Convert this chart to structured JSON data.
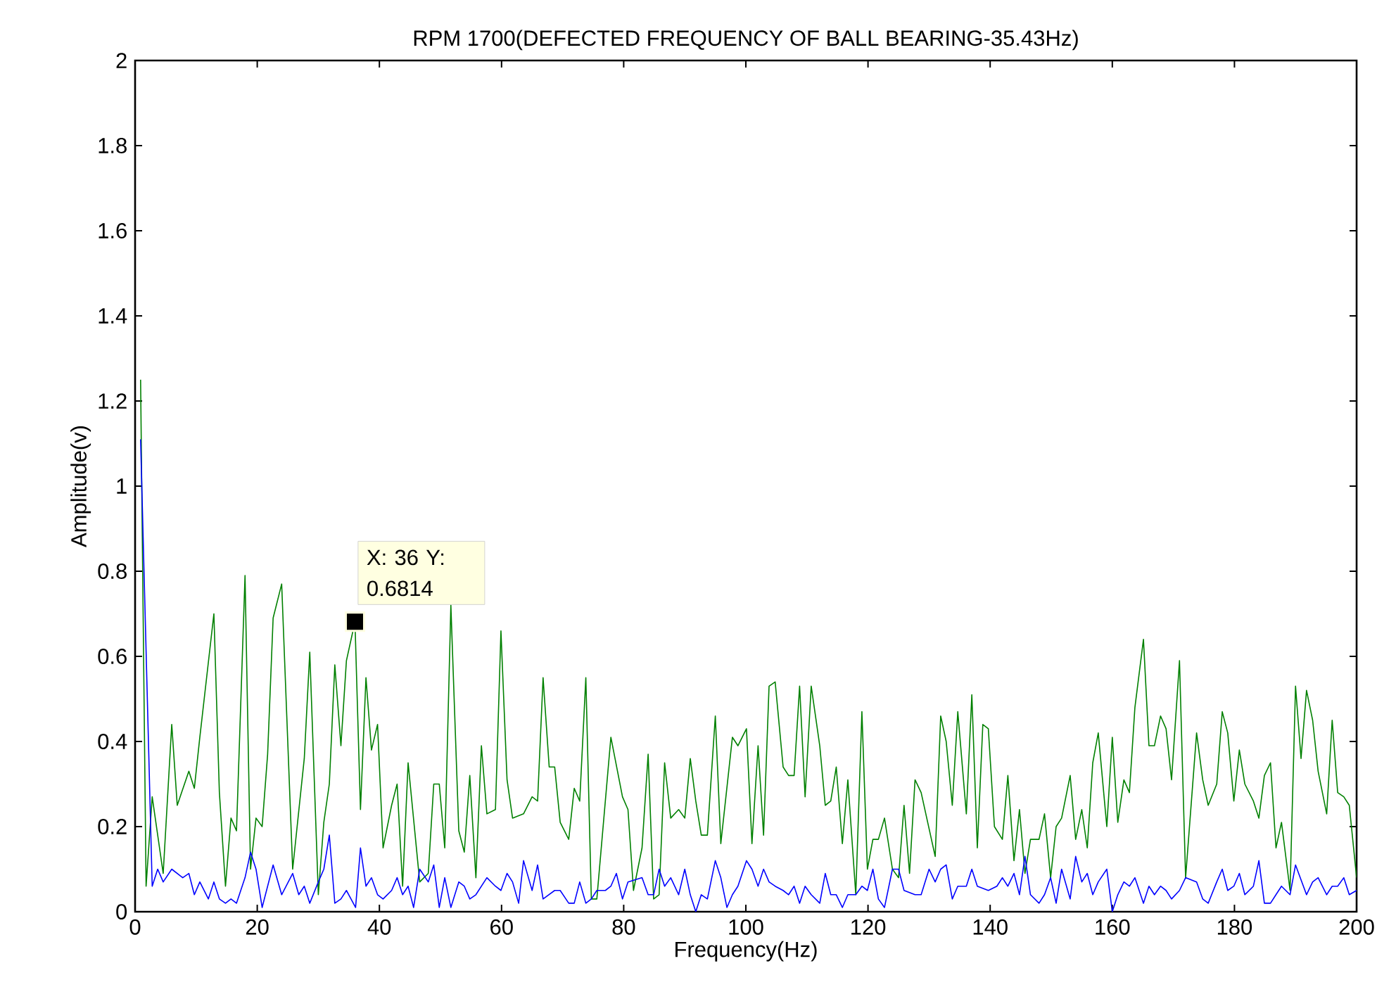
{
  "chart_data": {
    "type": "line",
    "title": "RPM 1700(DEFECTED FREQUENCY OF BALL BEARING-35.43Hz)",
    "xlabel": "Frequency(Hz)",
    "ylabel": "Amplitude(v)",
    "xlim": [
      0,
      200
    ],
    "ylim": [
      0,
      2
    ],
    "xticks": [
      0,
      20,
      40,
      60,
      80,
      100,
      120,
      140,
      160,
      180,
      200
    ],
    "yticks": [
      0,
      0.2,
      0.4,
      0.6,
      0.8,
      1,
      1.2,
      1.4,
      1.6,
      1.8,
      2
    ],
    "grid": false,
    "annotations": [
      {
        "text": "X: 36 Y: 0.6814",
        "x": 36,
        "y": 0.6814
      }
    ],
    "series": [
      {
        "color": "#008000",
        "x": [
          0.9,
          1.8,
          2.8,
          4.6,
          6.0,
          6.9,
          8.8,
          9.7,
          10.6,
          12.9,
          13.8,
          14.8,
          15.7,
          16.6,
          18.0,
          18.9,
          19.8,
          20.8,
          21.7,
          22.6,
          24.0,
          25.8,
          27.7,
          28.6,
          30.0,
          30.9,
          31.8,
          32.7,
          33.7,
          34.6,
          36,
          36.9,
          37.8,
          38.7,
          39.7,
          40.6,
          42.0,
          42.9,
          43.8,
          44.7,
          46.6,
          48.0,
          48.9,
          49.8,
          50.7,
          51.7,
          53.0,
          53.9,
          54.8,
          55.8,
          56.7,
          57.6,
          59.0,
          59.9,
          60.9,
          61.8,
          63.6,
          65.0,
          65.9,
          66.8,
          67.8,
          68.7,
          69.6,
          71.0,
          71.9,
          72.8,
          73.8,
          74.7,
          75.6,
          77.9,
          79.8,
          80.7,
          81.6,
          83.0,
          84.0,
          84.9,
          85.8,
          86.7,
          87.7,
          89.0,
          90.0,
          90.9,
          91.8,
          92.7,
          93.7,
          95.0,
          95.9,
          97.8,
          98.7,
          100.1,
          101.0,
          102.0,
          102.9,
          103.8,
          104.8,
          106.1,
          107.0,
          107.9,
          108.8,
          109.7,
          110.7,
          112.1,
          113.0,
          113.9,
          114.8,
          115.8,
          116.7,
          118.0,
          119.0,
          119.9,
          120.8,
          121.7,
          122.7,
          124.0,
          125.0,
          125.9,
          126.8,
          127.7,
          128.7,
          131.0,
          131.9,
          132.8,
          133.8,
          134.7,
          136.1,
          137.0,
          137.9,
          138.8,
          139.7,
          140.7,
          142.0,
          142.9,
          143.9,
          144.8,
          145.7,
          146.6,
          148.0,
          148.9,
          149.9,
          150.8,
          151.7,
          153.1,
          154.0,
          155.0,
          155.9,
          156.8,
          157.7,
          159.1,
          160.0,
          160.9,
          161.9,
          162.8,
          163.7,
          165.1,
          166.0,
          166.9,
          167.9,
          168.8,
          169.7,
          171.0,
          172.0,
          173.8,
          174.8,
          175.7,
          177.1,
          178.0,
          178.9,
          179.9,
          180.8,
          181.7,
          183.1,
          184.0,
          184.9,
          185.9,
          186.8,
          187.7,
          189.1,
          190.0,
          190.9,
          191.8,
          192.8,
          193.7,
          195.1,
          196.0,
          196.9,
          197.9,
          198.8,
          200
        ],
        "values": [
          1.25,
          0.06,
          0.27,
          0.09,
          0.44,
          0.25,
          0.33,
          0.29,
          0.41,
          0.7,
          0.28,
          0.06,
          0.22,
          0.19,
          0.79,
          0.1,
          0.22,
          0.2,
          0.37,
          0.69,
          0.77,
          0.1,
          0.36,
          0.61,
          0.04,
          0.21,
          0.3,
          0.58,
          0.39,
          0.59,
          0.6814,
          0.24,
          0.55,
          0.38,
          0.44,
          0.15,
          0.25,
          0.3,
          0.06,
          0.35,
          0.07,
          0.09,
          0.3,
          0.3,
          0.15,
          0.72,
          0.19,
          0.14,
          0.32,
          0.08,
          0.39,
          0.23,
          0.24,
          0.66,
          0.31,
          0.22,
          0.23,
          0.27,
          0.26,
          0.55,
          0.34,
          0.34,
          0.21,
          0.17,
          0.29,
          0.26,
          0.55,
          0.03,
          0.03,
          0.41,
          0.27,
          0.24,
          0.05,
          0.15,
          0.37,
          0.03,
          0.04,
          0.35,
          0.22,
          0.24,
          0.22,
          0.36,
          0.26,
          0.18,
          0.18,
          0.46,
          0.16,
          0.41,
          0.39,
          0.43,
          0.16,
          0.39,
          0.18,
          0.53,
          0.54,
          0.34,
          0.32,
          0.32,
          0.53,
          0.27,
          0.53,
          0.39,
          0.25,
          0.26,
          0.34,
          0.16,
          0.31,
          0.04,
          0.47,
          0.1,
          0.17,
          0.17,
          0.22,
          0.1,
          0.08,
          0.25,
          0.09,
          0.31,
          0.28,
          0.13,
          0.46,
          0.4,
          0.25,
          0.47,
          0.23,
          0.51,
          0.15,
          0.44,
          0.43,
          0.2,
          0.17,
          0.32,
          0.12,
          0.24,
          0.09,
          0.17,
          0.17,
          0.23,
          0.08,
          0.2,
          0.22,
          0.32,
          0.17,
          0.24,
          0.15,
          0.35,
          0.42,
          0.2,
          0.41,
          0.21,
          0.31,
          0.28,
          0.48,
          0.64,
          0.39,
          0.39,
          0.46,
          0.43,
          0.31,
          0.59,
          0.08,
          0.42,
          0.31,
          0.25,
          0.3,
          0.47,
          0.42,
          0.26,
          0.38,
          0.3,
          0.26,
          0.22,
          0.32,
          0.35,
          0.15,
          0.21,
          0.05,
          0.53,
          0.36,
          0.52,
          0.45,
          0.33,
          0.23,
          0.45,
          0.28,
          0.27,
          0.25,
          0.08
        ]
      },
      {
        "color": "#0000ff",
        "x": [
          0.9,
          2.8,
          3.7,
          4.6,
          6.0,
          7.8,
          8.8,
          9.7,
          10.6,
          12.0,
          12.9,
          13.8,
          14.8,
          15.7,
          16.6,
          18.0,
          18.9,
          19.8,
          20.8,
          22.6,
          24.0,
          25.8,
          26.8,
          27.7,
          28.6,
          30.0,
          30.9,
          31.8,
          32.7,
          33.7,
          34.6,
          36.1,
          36.9,
          37.8,
          38.7,
          39.7,
          40.6,
          42.0,
          42.9,
          43.8,
          44.7,
          45.6,
          46.6,
          48.0,
          48.9,
          49.8,
          50.7,
          51.7,
          53.0,
          53.9,
          54.8,
          55.8,
          57.6,
          59.0,
          59.9,
          60.9,
          61.8,
          62.8,
          63.6,
          65.0,
          65.9,
          66.8,
          68.7,
          69.6,
          71.0,
          71.9,
          72.8,
          73.8,
          74.7,
          75.6,
          77.0,
          77.9,
          78.8,
          79.8,
          80.7,
          83.0,
          84.0,
          84.9,
          85.8,
          86.7,
          87.7,
          89.0,
          90.0,
          90.9,
          91.8,
          92.7,
          93.7,
          95.0,
          95.9,
          96.9,
          97.8,
          98.7,
          100.1,
          101.0,
          102.0,
          102.9,
          103.8,
          104.8,
          106.1,
          107.0,
          107.9,
          108.8,
          109.7,
          110.7,
          112.1,
          113.0,
          113.9,
          114.8,
          115.8,
          116.7,
          118.0,
          119.0,
          119.9,
          120.8,
          121.7,
          122.7,
          124.0,
          125.0,
          125.9,
          127.7,
          128.7,
          130.0,
          131.0,
          131.9,
          132.8,
          133.8,
          134.7,
          136.1,
          137.0,
          137.9,
          139.7,
          141.1,
          142.0,
          142.9,
          143.9,
          144.8,
          145.7,
          146.6,
          148.0,
          148.9,
          149.9,
          150.8,
          151.7,
          153.1,
          154.0,
          155.0,
          155.9,
          156.8,
          157.7,
          159.1,
          160.0,
          160.9,
          161.9,
          162.8,
          163.7,
          165.1,
          166.0,
          166.9,
          167.9,
          168.8,
          169.7,
          171.0,
          172.0,
          173.8,
          174.8,
          175.7,
          177.1,
          178.0,
          178.9,
          179.9,
          180.8,
          181.7,
          183.1,
          184.0,
          184.9,
          185.9,
          186.8,
          187.7,
          189.1,
          190.0,
          191.8,
          192.8,
          193.7,
          195.1,
          196.0,
          196.9,
          197.9,
          198.8,
          200
        ],
        "values": [
          1.11,
          0.06,
          0.1,
          0.07,
          0.1,
          0.08,
          0.09,
          0.04,
          0.07,
          0.03,
          0.07,
          0.03,
          0.02,
          0.03,
          0.02,
          0.08,
          0.14,
          0.1,
          0.01,
          0.11,
          0.04,
          0.09,
          0.04,
          0.06,
          0.02,
          0.07,
          0.1,
          0.18,
          0.02,
          0.03,
          0.05,
          0.01,
          0.15,
          0.06,
          0.08,
          0.04,
          0.03,
          0.05,
          0.08,
          0.04,
          0.06,
          0.01,
          0.1,
          0.07,
          0.11,
          0.01,
          0.08,
          0.01,
          0.07,
          0.06,
          0.03,
          0.04,
          0.08,
          0.06,
          0.05,
          0.09,
          0.07,
          0.02,
          0.12,
          0.05,
          0.11,
          0.03,
          0.05,
          0.05,
          0.02,
          0.02,
          0.07,
          0.02,
          0.03,
          0.05,
          0.05,
          0.06,
          0.09,
          0.03,
          0.07,
          0.08,
          0.04,
          0.04,
          0.1,
          0.06,
          0.08,
          0.04,
          0.1,
          0.04,
          0.0,
          0.04,
          0.03,
          0.12,
          0.08,
          0.01,
          0.04,
          0.06,
          0.12,
          0.1,
          0.06,
          0.1,
          0.07,
          0.06,
          0.05,
          0.04,
          0.06,
          0.02,
          0.06,
          0.04,
          0.02,
          0.09,
          0.04,
          0.04,
          0.01,
          0.04,
          0.04,
          0.06,
          0.05,
          0.1,
          0.03,
          0.01,
          0.1,
          0.1,
          0.05,
          0.04,
          0.04,
          0.1,
          0.07,
          0.1,
          0.11,
          0.03,
          0.06,
          0.06,
          0.1,
          0.06,
          0.05,
          0.06,
          0.08,
          0.06,
          0.09,
          0.04,
          0.13,
          0.04,
          0.02,
          0.04,
          0.08,
          0.02,
          0.1,
          0.03,
          0.13,
          0.07,
          0.09,
          0.04,
          0.07,
          0.1,
          0.0,
          0.04,
          0.07,
          0.06,
          0.08,
          0.02,
          0.06,
          0.04,
          0.06,
          0.05,
          0.03,
          0.05,
          0.08,
          0.07,
          0.03,
          0.02,
          0.07,
          0.1,
          0.05,
          0.06,
          0.09,
          0.04,
          0.06,
          0.12,
          0.02,
          0.02,
          0.04,
          0.06,
          0.04,
          0.11,
          0.04,
          0.07,
          0.08,
          0.04,
          0.06,
          0.06,
          0.08,
          0.04,
          0.05
        ]
      }
    ]
  }
}
